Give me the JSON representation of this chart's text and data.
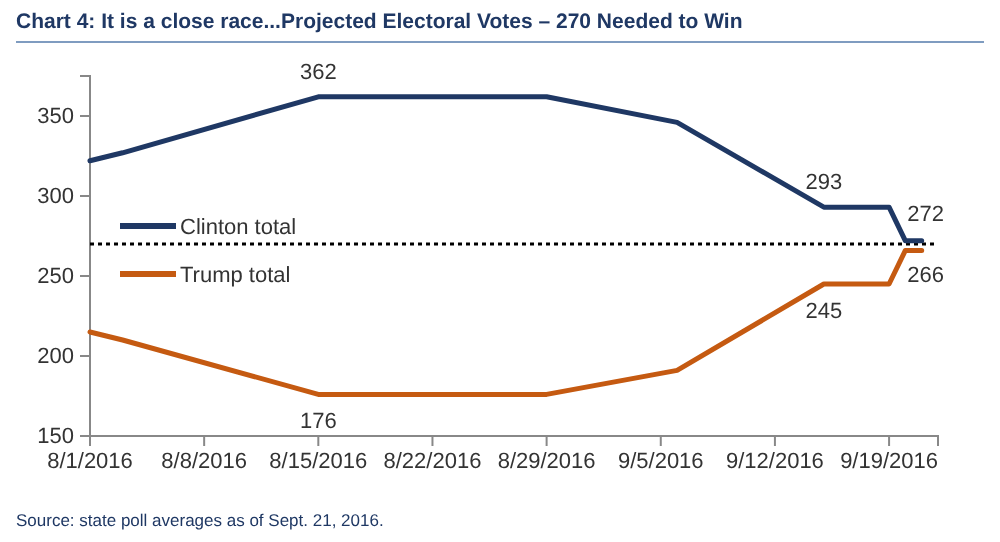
{
  "chart_data": {
    "type": "line",
    "title": "Chart 4: It is a close race...Projected Electoral Votes – 270 Needed to Win",
    "x": [
      "2016-08-01",
      "2016-08-03",
      "2016-08-15",
      "2016-08-29",
      "2016-09-06",
      "2016-09-15",
      "2016-09-19",
      "2016-09-20",
      "2016-09-21"
    ],
    "series": [
      {
        "name": "Clinton total",
        "color": "#1f3864",
        "values": [
          322,
          327,
          362,
          362,
          346,
          293,
          293,
          272,
          272
        ]
      },
      {
        "name": "Trump total",
        "color": "#c55a11",
        "values": [
          215,
          210,
          176,
          176,
          191,
          245,
          245,
          266,
          266
        ]
      }
    ],
    "xlim": [
      "2016-08-01",
      "2016-09-22"
    ],
    "xticks": [
      {
        "value": "2016-08-01",
        "label": "8/1/2016"
      },
      {
        "value": "2016-08-08",
        "label": "8/8/2016"
      },
      {
        "value": "2016-08-15",
        "label": "8/15/2016"
      },
      {
        "value": "2016-08-22",
        "label": "8/22/2016"
      },
      {
        "value": "2016-08-29",
        "label": "8/29/2016"
      },
      {
        "value": "2016-09-05",
        "label": "9/5/2016"
      },
      {
        "value": "2016-09-12",
        "label": "9/12/2016"
      },
      {
        "value": "2016-09-19",
        "label": "9/19/2016"
      }
    ],
    "ylim": [
      150,
      375
    ],
    "yticks": [
      150,
      200,
      250,
      300,
      350
    ],
    "ref_lines": [
      {
        "axis": "y",
        "value": 270,
        "color": "#000000",
        "line_style": "dotted"
      }
    ],
    "annotations": [
      {
        "text": "362",
        "x": "2016-08-15",
        "y": 362
      },
      {
        "text": "176",
        "x": "2016-08-15",
        "y": 176
      },
      {
        "text": "293",
        "x": "2016-09-15",
        "y": 293
      },
      {
        "text": "245",
        "x": "2016-09-15",
        "y": 245
      },
      {
        "text": "272",
        "x": "2016-09-21",
        "y": 272
      },
      {
        "text": "266",
        "x": "2016-09-21",
        "y": 266
      },
      "Source: state poll averages as of Sept. 21, 2016."
    ],
    "legend": "left",
    "grid": false,
    "marker": "none",
    "line_style": "solid"
  }
}
